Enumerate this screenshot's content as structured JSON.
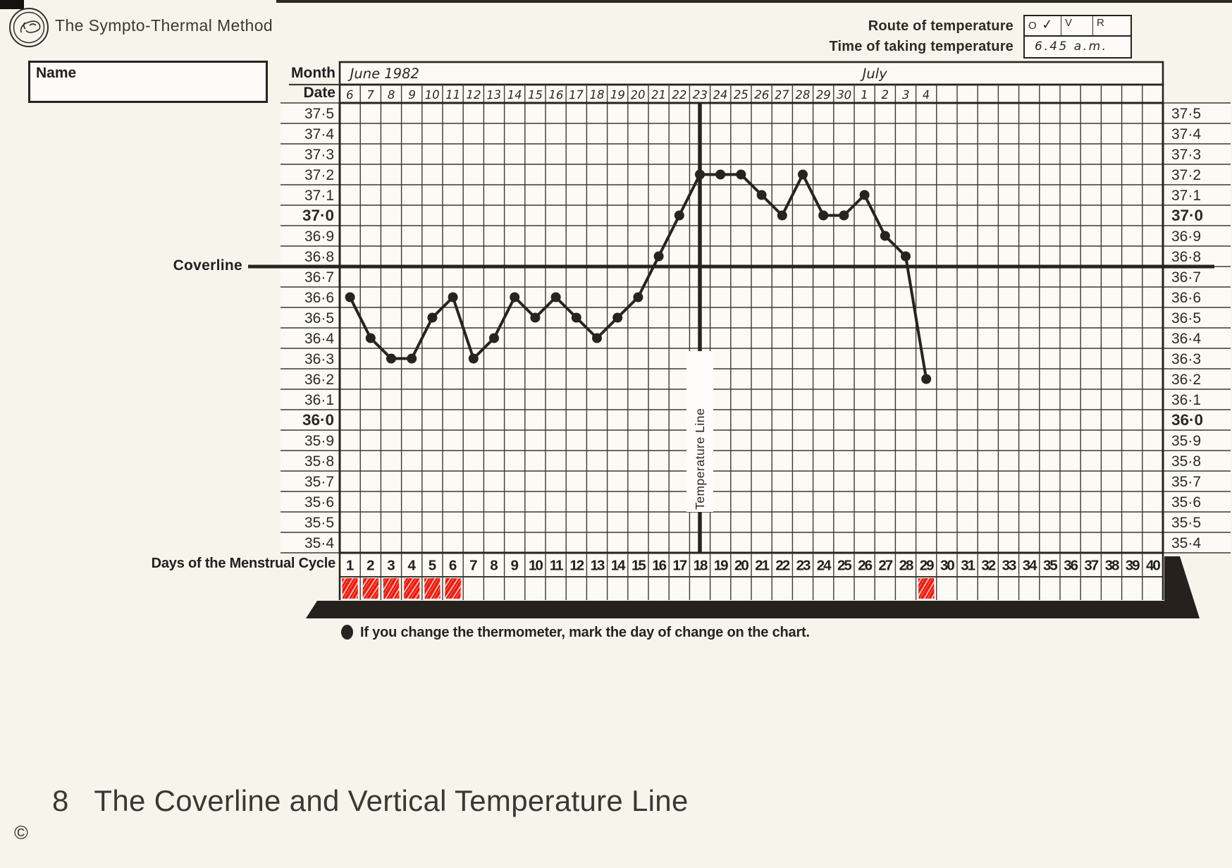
{
  "header": {
    "title": "The Sympto-Thermal Method",
    "route_label": "Route of temperature",
    "time_label": "Time of taking temperature",
    "route_options": [
      {
        "label": "O",
        "checked": true
      },
      {
        "label": "V",
        "checked": false
      },
      {
        "label": "R",
        "checked": false
      }
    ],
    "route_check_mark": "✓",
    "time_value": "6.45 a.m.",
    "name_label": "Name",
    "name_value": ""
  },
  "labels": {
    "month": "Month",
    "date": "Date",
    "coverline": "Coverline",
    "days_of_cycle": "Days of the Menstrual Cycle"
  },
  "chart_data": {
    "type": "line",
    "title": "Basal body temperature chart (Celsius)",
    "months": [
      {
        "label": "June 1982",
        "anchor_day": 1.5,
        "align": "start"
      },
      {
        "label": "July",
        "anchor_day": 27,
        "align": "middle"
      }
    ],
    "dates": [
      "6",
      "7",
      "8",
      "9",
      "10",
      "11",
      "12",
      "13",
      "14",
      "15",
      "16",
      "17",
      "18",
      "19",
      "20",
      "21",
      "22",
      "23",
      "24",
      "25",
      "26",
      "27",
      "28",
      "29",
      "30",
      "1",
      "2",
      "3",
      "4"
    ],
    "cycle_days": [
      "1",
      "2",
      "3",
      "4",
      "5",
      "6",
      "7",
      "8",
      "9",
      "10",
      "11",
      "12",
      "13",
      "14",
      "15",
      "16",
      "17",
      "18",
      "19",
      "20",
      "21",
      "22",
      "23",
      "24",
      "25",
      "26",
      "27",
      "28",
      "29",
      "30",
      "31",
      "32",
      "33",
      "34",
      "35",
      "36",
      "37",
      "38",
      "39",
      "40"
    ],
    "temperatures": [
      36.6,
      36.4,
      36.3,
      36.3,
      36.5,
      36.6,
      36.3,
      36.4,
      36.6,
      36.5,
      36.6,
      36.5,
      36.4,
      36.5,
      36.6,
      36.8,
      37.0,
      37.2,
      37.2,
      37.2,
      37.1,
      37.0,
      37.2,
      37.0,
      37.0,
      37.1,
      36.9,
      36.8,
      36.2
    ],
    "y_tick_labels": [
      "37·5",
      "37·4",
      "37·3",
      "37·2",
      "37·1",
      "37·0",
      "36·9",
      "36·8",
      "36·7",
      "36·6",
      "36·5",
      "36·4",
      "36·3",
      "36·2",
      "36·1",
      "36·0",
      "35·9",
      "35·8",
      "35·7",
      "35·6",
      "35·5",
      "35·4"
    ],
    "bold_tick_labels": [
      "37·0",
      "36·0"
    ],
    "y_range": [
      35.4,
      37.5
    ],
    "y_step": 0.1,
    "x_day_range": [
      1,
      40
    ],
    "coverline_value": 36.75,
    "vertical_line_day": 18,
    "vertical_line_label": "Temperature Line",
    "menstruation_days": [
      1,
      2,
      3,
      4,
      5,
      6,
      29
    ],
    "grid": true,
    "colors": {
      "ink": "#262320",
      "grid_line": "#3d3934",
      "menses_red": "#f2170a",
      "paper": "#f7f4ec",
      "grid_paper": "#fcfaf4",
      "shadow_bar": "#26211d"
    }
  },
  "note": {
    "bullet": "●",
    "text": "If you change the thermometer, mark the day of change on the chart."
  },
  "footer": {
    "number": "8",
    "title": "The Coverline and Vertical Temperature Line",
    "copyright": "©"
  }
}
